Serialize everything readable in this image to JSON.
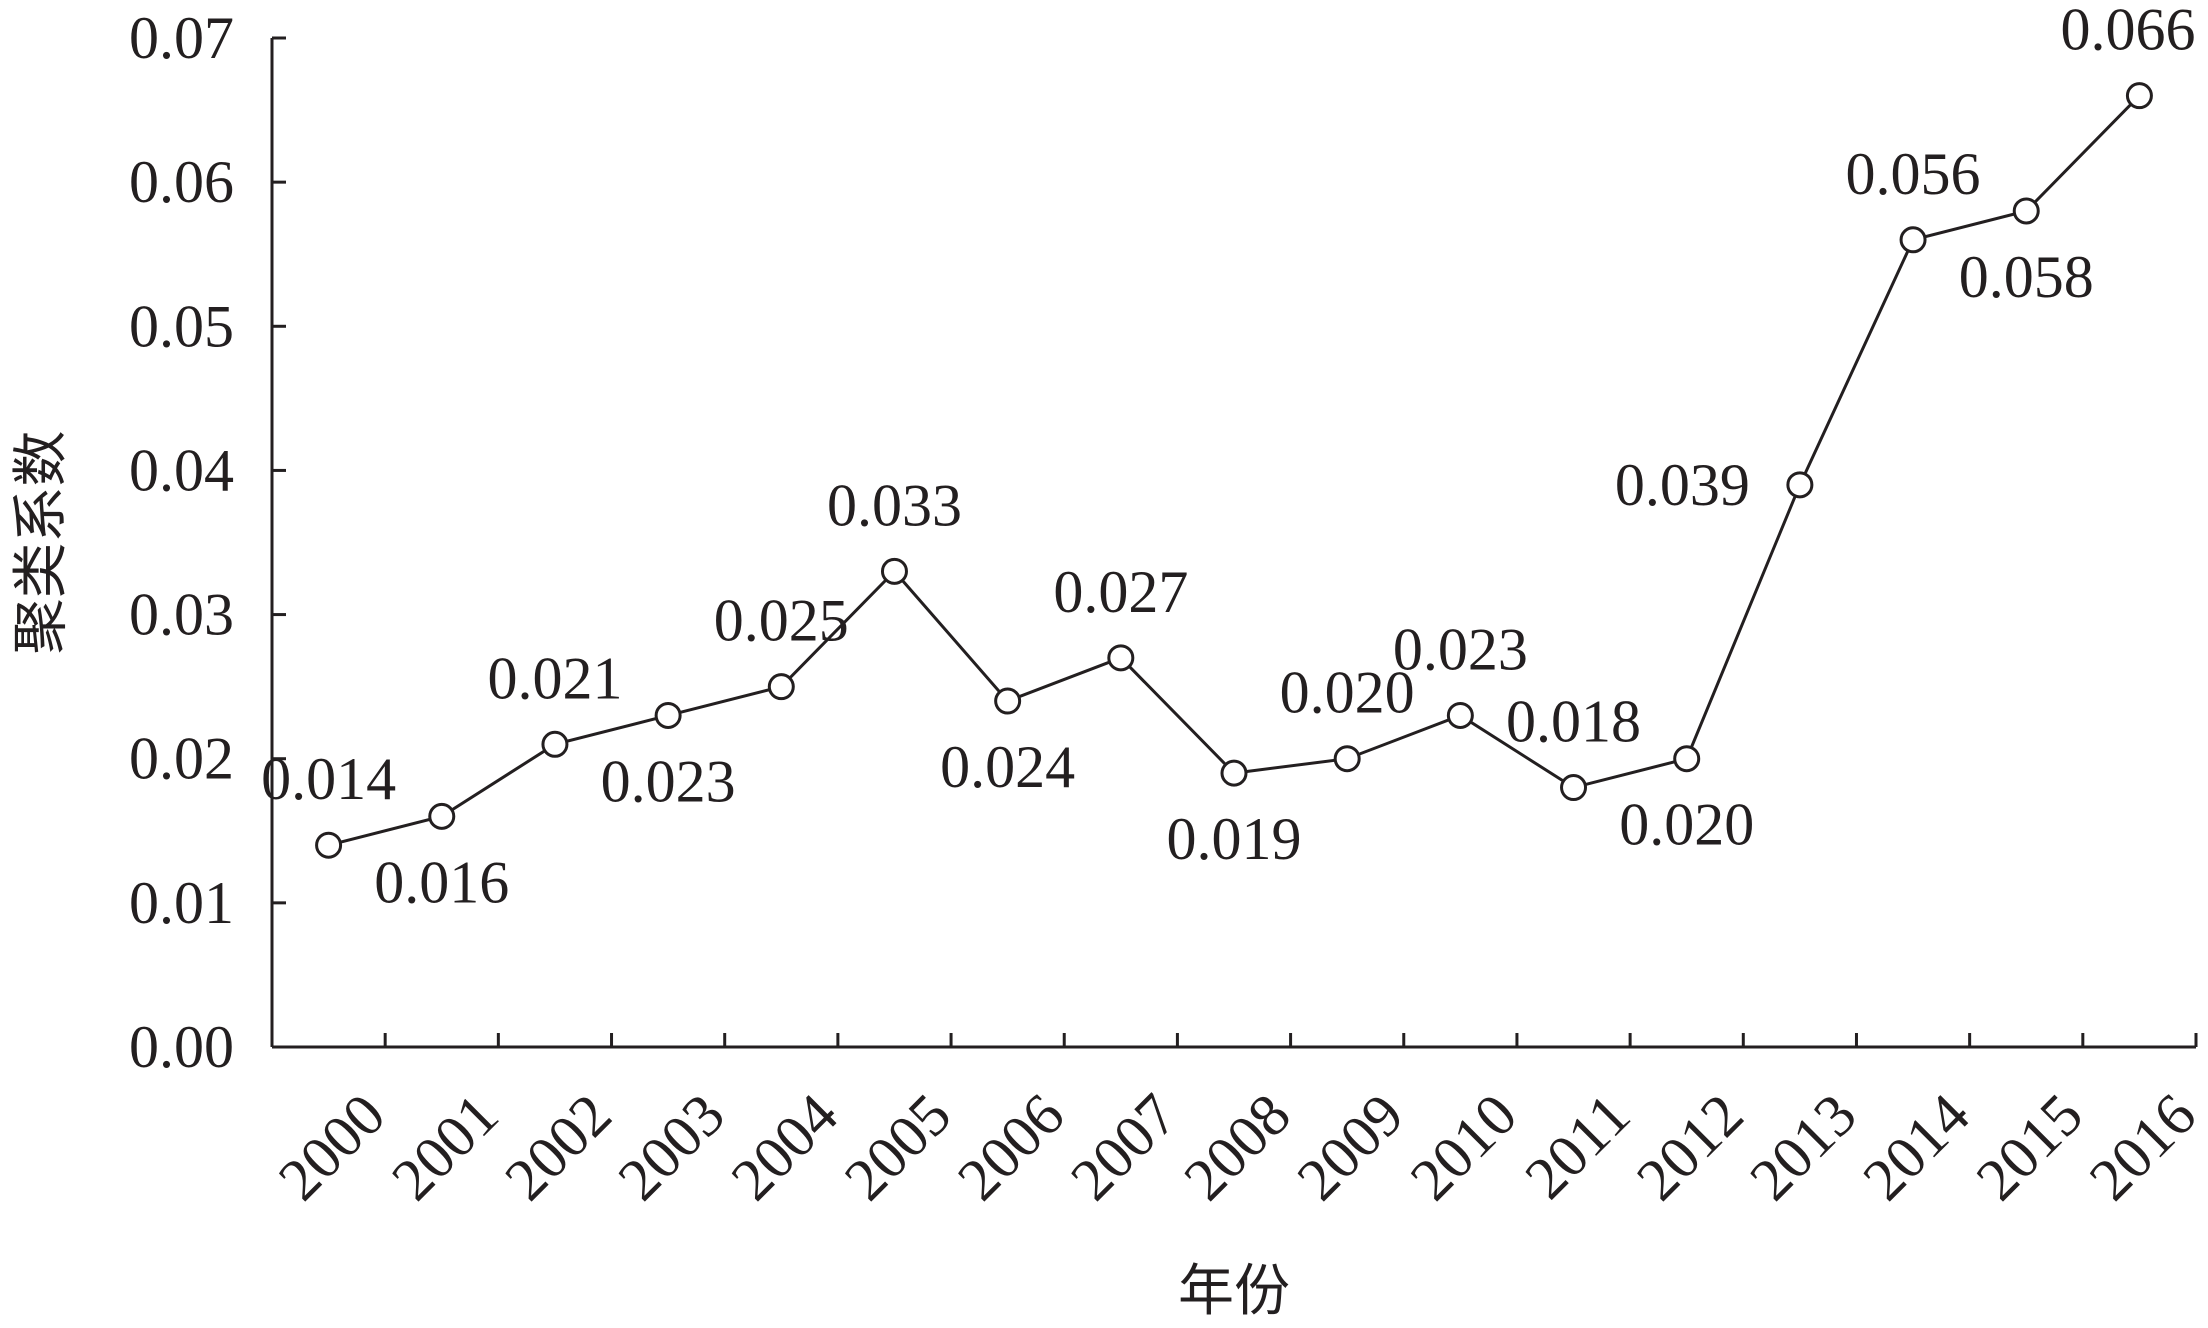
{
  "chart_data": {
    "type": "line",
    "title": "",
    "xlabel": "年份",
    "ylabel": "聚类系数",
    "categories": [
      "2000",
      "2001",
      "2002",
      "2003",
      "2004",
      "2005",
      "2006",
      "2007",
      "2008",
      "2009",
      "2010",
      "2011",
      "2012",
      "2013",
      "2014",
      "2015",
      "2016"
    ],
    "series": [
      {
        "values": [
          0.014,
          0.016,
          0.021,
          0.023,
          0.025,
          0.033,
          0.024,
          0.027,
          0.019,
          0.02,
          0.023,
          0.018,
          0.02,
          0.039,
          0.056,
          0.058,
          0.066
        ],
        "labels": [
          "0.014",
          "0.016",
          "0.021",
          "0.023",
          "0.025",
          "0.033",
          "0.024",
          "0.027",
          "0.019",
          "0.020",
          "0.023",
          "0.018",
          "0.020",
          "0.039",
          "0.056",
          "0.058",
          "0.066"
        ],
        "label_positions": [
          "above",
          "below",
          "above",
          "below",
          "above",
          "above",
          "below",
          "above",
          "below",
          "above",
          "above",
          "above",
          "below",
          "left",
          "above",
          "below",
          "above"
        ]
      }
    ],
    "ylim": [
      0,
      0.07
    ],
    "yticks": [
      "0.00",
      "0.01",
      "0.02",
      "0.03",
      "0.04",
      "0.05",
      "0.06",
      "0.07"
    ],
    "grid": false,
    "legend": "none",
    "colors": {
      "line": "#231f20",
      "marker_fill": "#ffffff",
      "text": "#231f20"
    },
    "marker": "open-circle"
  }
}
